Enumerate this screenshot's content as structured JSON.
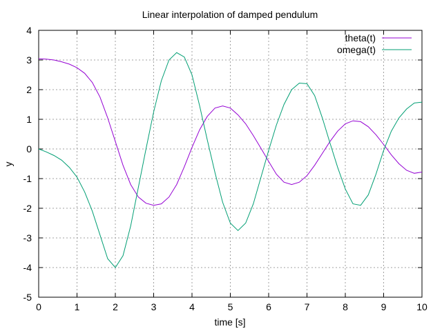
{
  "chart_data": {
    "type": "line",
    "title": "Linear interpolation of damped pendulum",
    "xlabel": "time [s]",
    "ylabel": "y",
    "xlim": [
      0,
      10
    ],
    "ylim": [
      -5,
      4
    ],
    "xticks": [
      0,
      1,
      2,
      3,
      4,
      5,
      6,
      7,
      8,
      9,
      10
    ],
    "yticks": [
      -5,
      -4,
      -3,
      -2,
      -1,
      0,
      1,
      2,
      3,
      4
    ],
    "grid": true,
    "legend_position": "top-right",
    "series": [
      {
        "name": "theta(t)",
        "color": "#9400d3",
        "x": [
          0,
          0.2,
          0.4,
          0.6,
          0.8,
          1.0,
          1.2,
          1.4,
          1.6,
          1.8,
          2.0,
          2.2,
          2.4,
          2.6,
          2.8,
          3.0,
          3.2,
          3.4,
          3.6,
          3.8,
          4.0,
          4.2,
          4.4,
          4.6,
          4.8,
          5.0,
          5.2,
          5.4,
          5.6,
          5.8,
          6.0,
          6.2,
          6.4,
          6.6,
          6.8,
          7.0,
          7.2,
          7.4,
          7.6,
          7.8,
          8.0,
          8.2,
          8.4,
          8.6,
          8.8,
          9.0,
          9.2,
          9.4,
          9.6,
          9.8,
          10.0
        ],
        "values": [
          3.04,
          3.03,
          3.0,
          2.94,
          2.86,
          2.74,
          2.55,
          2.24,
          1.75,
          1.05,
          0.25,
          -0.55,
          -1.2,
          -1.62,
          -1.83,
          -1.9,
          -1.85,
          -1.62,
          -1.2,
          -0.6,
          0.05,
          0.65,
          1.1,
          1.38,
          1.45,
          1.38,
          1.15,
          0.85,
          0.45,
          0.02,
          -0.42,
          -0.85,
          -1.12,
          -1.2,
          -1.12,
          -0.9,
          -0.55,
          -0.15,
          0.25,
          0.6,
          0.85,
          0.95,
          0.92,
          0.75,
          0.48,
          0.15,
          -0.2,
          -0.5,
          -0.72,
          -0.82,
          -0.78
        ]
      },
      {
        "name": "omega(t)",
        "color": "#009e73",
        "x": [
          0,
          0.2,
          0.4,
          0.6,
          0.8,
          1.0,
          1.2,
          1.4,
          1.6,
          1.8,
          2.0,
          2.2,
          2.4,
          2.6,
          2.8,
          3.0,
          3.2,
          3.4,
          3.6,
          3.8,
          4.0,
          4.2,
          4.4,
          4.6,
          4.8,
          5.0,
          5.2,
          5.4,
          5.6,
          5.8,
          6.0,
          6.2,
          6.4,
          6.6,
          6.8,
          7.0,
          7.2,
          7.4,
          7.6,
          7.8,
          8.0,
          8.2,
          8.4,
          8.6,
          8.8,
          9.0,
          9.2,
          9.4,
          9.6,
          9.8,
          10.0
        ],
        "values": [
          0.0,
          -0.1,
          -0.22,
          -0.38,
          -0.62,
          -0.95,
          -1.45,
          -2.1,
          -2.9,
          -3.7,
          -4.0,
          -3.6,
          -2.6,
          -1.3,
          0.0,
          1.25,
          2.3,
          3.0,
          3.25,
          3.1,
          2.5,
          1.45,
          0.3,
          -0.8,
          -1.8,
          -2.5,
          -2.75,
          -2.5,
          -1.85,
          -0.95,
          -0.05,
          0.8,
          1.5,
          2.0,
          2.22,
          2.2,
          1.8,
          1.05,
          0.2,
          -0.62,
          -1.35,
          -1.85,
          -1.9,
          -1.55,
          -0.85,
          -0.05,
          0.6,
          1.05,
          1.35,
          1.55,
          1.58
        ]
      }
    ]
  }
}
